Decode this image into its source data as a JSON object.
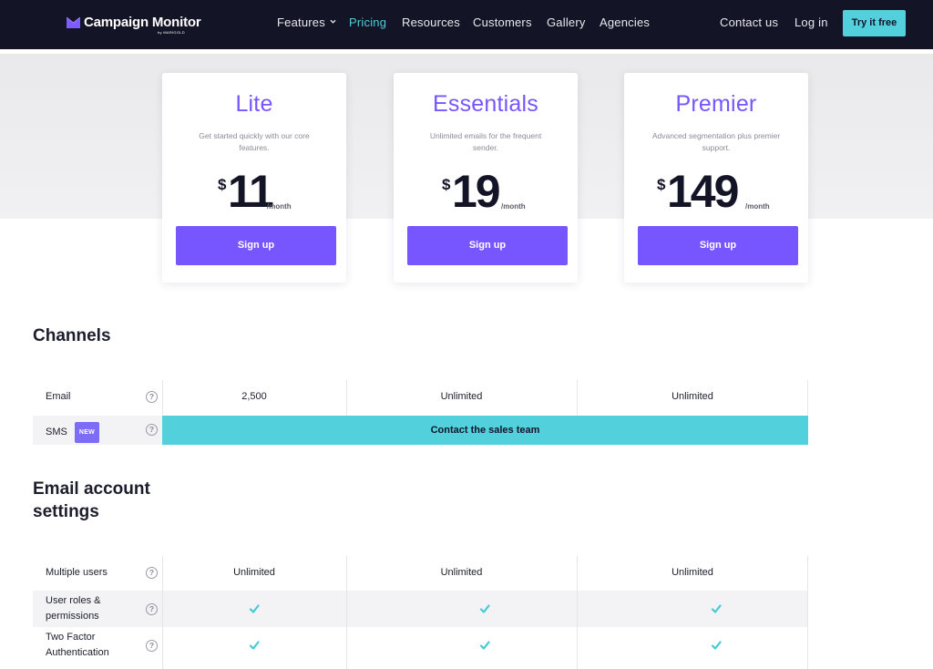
{
  "brand": {
    "name": "Campaign Monitor",
    "tagline": "by MARIGOLD",
    "icon": "envelope-logo-icon",
    "colors": {
      "nav_bg": "#141427",
      "accent_purple": "#7856ff",
      "accent_teal": "#52d0dc"
    }
  },
  "nav": {
    "links": [
      "Features",
      "Pricing",
      "Resources",
      "Customers",
      "Gallery",
      "Agencies"
    ],
    "active": "Pricing",
    "contact": "Contact us",
    "login": "Log in",
    "cta": "Try it free"
  },
  "plans": [
    {
      "name": "Lite",
      "description": "Get started quickly with our core features.",
      "currency": "$",
      "price": "11",
      "period": "/month",
      "button": "Sign up"
    },
    {
      "name": "Essentials",
      "description": "Unlimited emails for the frequent sender.",
      "currency": "$",
      "price": "19",
      "period": "/month",
      "button": "Sign up"
    },
    {
      "name": "Premier",
      "description": "Advanced segmentation plus premier support.",
      "currency": "$",
      "price": "149",
      "period": "/month",
      "button": "Sign up"
    }
  ],
  "channels": {
    "title": "Channels",
    "email": {
      "label": "Email",
      "values": [
        "2,500",
        "Unlimited",
        "Unlimited"
      ]
    },
    "sms": {
      "label": "SMS",
      "badge": "NEW",
      "value": "Contact the sales team"
    }
  },
  "settings": {
    "title": "Email account settings",
    "rows": [
      {
        "label": "Multiple users",
        "values": [
          "Unlimited",
          "Unlimited",
          "Unlimited"
        ]
      },
      {
        "label": "User roles & permissions",
        "values": [
          "check",
          "check",
          "check"
        ]
      },
      {
        "label": "Two Factor Authentication",
        "values": [
          "check",
          "check",
          "check"
        ]
      }
    ]
  },
  "help_glyph": "?"
}
